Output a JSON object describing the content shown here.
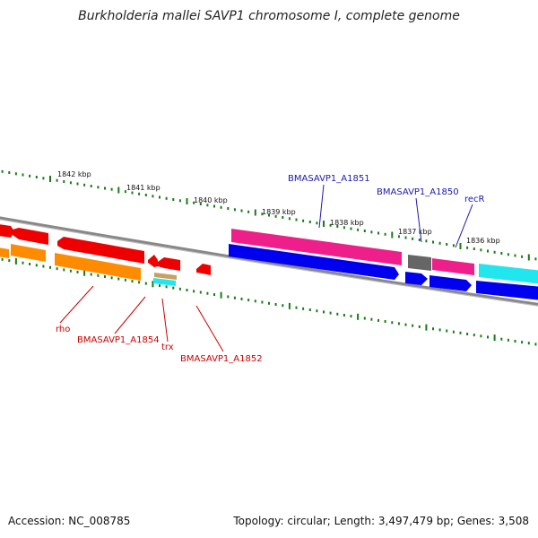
{
  "title": "Burkholderia mallei SAVP1 chromosome I, complete genome",
  "accession": "Accession: NC_008785",
  "topology": "Topology: circular; Length: 3,497,479 bp; Genes: 3,508",
  "colors": {
    "backbone": "#8a8a8a",
    "tick": "#1a7a1a",
    "forward_red": "#ee0000",
    "forward_pink": "#ee1f8a",
    "reverse_orange": "#ff8c00",
    "reverse_blue": "#0000ee",
    "cyan": "#22e6ee",
    "gray_gene": "#666666",
    "label_blue": "#1a1ab0",
    "label_red": "#cc0000"
  },
  "kbp_labels": [
    "1842 kbp",
    "1841 kbp",
    "1840 kbp",
    "1839 kbp",
    "1838 kbp",
    "1837 kbp",
    "1836 kbp"
  ],
  "gene_labels": {
    "top": [
      "BMASAVP1_A1851",
      "BMASAVP1_A1850",
      "recR"
    ],
    "bottom": [
      "rho",
      "BMASAVP1_A1854",
      "trx",
      "BMASAVP1_A1852"
    ]
  }
}
